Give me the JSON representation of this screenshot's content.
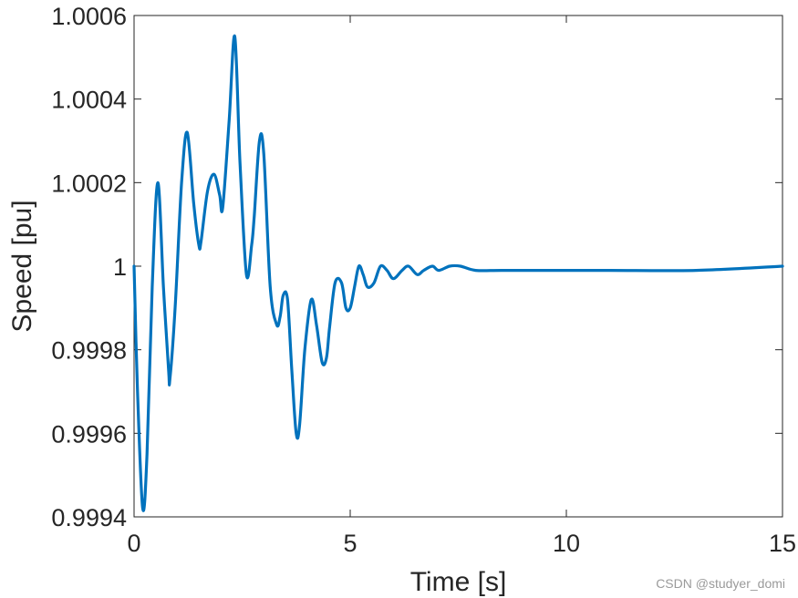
{
  "chart_data": {
    "type": "line",
    "title": "",
    "xlabel": "Time [s]",
    "ylabel": "Speed [pu]",
    "xlim": [
      0,
      15
    ],
    "ylim": [
      0.9994,
      1.0006
    ],
    "xticks": [
      0,
      5,
      10,
      15
    ],
    "xtick_labels": [
      "0",
      "5",
      "10",
      "15"
    ],
    "yticks": [
      0.9994,
      0.9996,
      0.9998,
      1.0,
      1.0002,
      1.0004,
      1.0006
    ],
    "ytick_labels": [
      "0.9994",
      "0.9996",
      "0.9998",
      "1",
      "1.0002",
      "1.0004",
      "1.0006"
    ],
    "grid": false,
    "series": [
      {
        "color": "#0072BD",
        "x": [
          0,
          0.08,
          0.2,
          0.3,
          0.42,
          0.55,
          0.68,
          0.8,
          0.83,
          0.95,
          1.1,
          1.23,
          1.38,
          1.5,
          1.55,
          1.7,
          1.85,
          1.98,
          2.05,
          2.2,
          2.33,
          2.45,
          2.6,
          2.72,
          2.78,
          2.9,
          3.0,
          3.15,
          3.3,
          3.38,
          3.45,
          3.55,
          3.65,
          3.75,
          3.83,
          3.95,
          4.1,
          4.22,
          4.35,
          4.45,
          4.52,
          4.65,
          4.8,
          4.9,
          5.0,
          5.1,
          5.2,
          5.3,
          5.4,
          5.55,
          5.7,
          5.85,
          6.0,
          6.2,
          6.35,
          6.55,
          6.7,
          6.9,
          7.05,
          7.3,
          7.55,
          7.9,
          8.5,
          9.5,
          11,
          13,
          15
        ],
        "y": [
          1.0,
          0.9997,
          0.99942,
          0.99955,
          0.99995,
          1.0002,
          0.99995,
          0.99975,
          0.99973,
          0.9999,
          1.0002,
          1.00032,
          1.00015,
          1.00005,
          1.00006,
          1.00018,
          1.00022,
          1.00017,
          1.00014,
          1.00035,
          1.00055,
          1.00025,
          0.99998,
          1.00005,
          1.00012,
          1.0003,
          1.00027,
          0.99995,
          0.99986,
          0.99988,
          0.99993,
          0.99992,
          0.99975,
          0.9996,
          0.99962,
          0.9998,
          0.99992,
          0.99986,
          0.99977,
          0.99978,
          0.99985,
          0.99996,
          0.99996,
          0.9999,
          0.9999,
          0.99995,
          1.0,
          0.99998,
          0.99995,
          0.99996,
          1.0,
          0.99999,
          0.99997,
          0.99999,
          1.0,
          0.99998,
          0.99999,
          1.0,
          0.99999,
          1.0,
          1.0,
          0.99999,
          0.99999,
          0.99999,
          0.99999,
          0.99999,
          1.0
        ]
      }
    ]
  },
  "watermark": "CSDN @studyer_domi"
}
